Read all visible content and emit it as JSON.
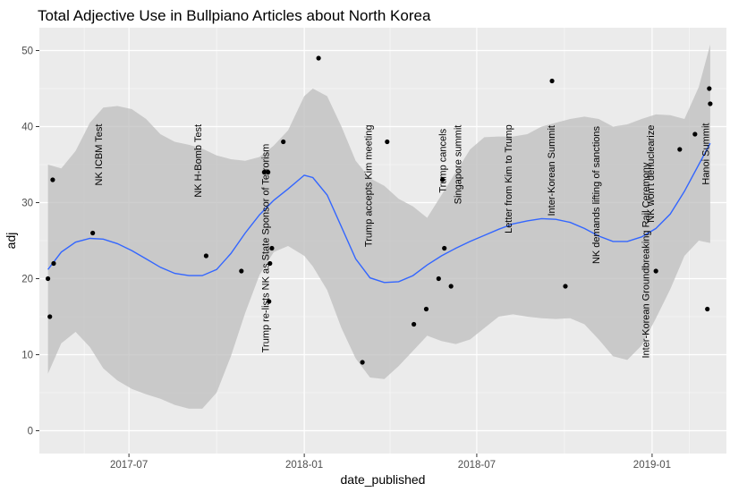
{
  "chart_data": {
    "type": "scatter",
    "title": "Total Adjective Use in Bullpiano Articles about North Korea",
    "xlabel": "date_published",
    "ylabel": "adj",
    "x_type": "date",
    "xlim": [
      "2017-03-29",
      "2019-03-20"
    ],
    "ylim": [
      -3,
      53
    ],
    "yticks": [
      0,
      10,
      20,
      30,
      40,
      50
    ],
    "xticks": [
      {
        "date": "2017-07-01",
        "label": "2017-07"
      },
      {
        "date": "2018-01-01",
        "label": "2018-01"
      },
      {
        "date": "2018-07-01",
        "label": "2018-07"
      },
      {
        "date": "2019-01-01",
        "label": "2019-01"
      }
    ],
    "grid": true,
    "colors": {
      "panel": "#ebebeb",
      "grid_major": "#ffffff",
      "points": "#000000",
      "smooth_line": "#3366ff",
      "ribbon": "#bdbdbd"
    },
    "points": [
      {
        "x": "2017-04-07",
        "y": 20
      },
      {
        "x": "2017-04-09",
        "y": 15
      },
      {
        "x": "2017-04-12",
        "y": 33
      },
      {
        "x": "2017-04-13",
        "y": 22
      },
      {
        "x": "2017-05-24",
        "y": 26
      },
      {
        "x": "2017-09-20",
        "y": 23
      },
      {
        "x": "2017-10-27",
        "y": 21
      },
      {
        "x": "2017-11-20",
        "y": 34
      },
      {
        "x": "2017-11-24",
        "y": 34
      },
      {
        "x": "2017-11-25",
        "y": 17
      },
      {
        "x": "2017-11-26",
        "y": 22
      },
      {
        "x": "2017-11-28",
        "y": 24
      },
      {
        "x": "2017-12-10",
        "y": 38
      },
      {
        "x": "2018-01-16",
        "y": 49
      },
      {
        "x": "2018-03-03",
        "y": 9
      },
      {
        "x": "2018-03-29",
        "y": 38
      },
      {
        "x": "2018-04-26",
        "y": 14
      },
      {
        "x": "2018-05-09",
        "y": 16
      },
      {
        "x": "2018-05-22",
        "y": 20
      },
      {
        "x": "2018-05-26",
        "y": 33
      },
      {
        "x": "2018-05-28",
        "y": 24
      },
      {
        "x": "2018-06-04",
        "y": 19
      },
      {
        "x": "2018-09-18",
        "y": 46
      },
      {
        "x": "2018-10-02",
        "y": 19
      },
      {
        "x": "2019-01-05",
        "y": 21
      },
      {
        "x": "2019-01-30",
        "y": 37
      },
      {
        "x": "2019-02-15",
        "y": 39
      },
      {
        "x": "2019-02-28",
        "y": 16
      },
      {
        "x": "2019-03-02",
        "y": 45
      },
      {
        "x": "2019-03-03",
        "y": 43
      }
    ],
    "smooth": [
      {
        "x": "2017-04-07",
        "y": 21.2,
        "lo": 7.5,
        "hi": 35.0
      },
      {
        "x": "2017-04-21",
        "y": 23.5,
        "lo": 11.5,
        "hi": 34.5
      },
      {
        "x": "2017-05-06",
        "y": 24.8,
        "lo": 13.0,
        "hi": 36.8
      },
      {
        "x": "2017-05-21",
        "y": 25.3,
        "lo": 11.0,
        "hi": 40.5
      },
      {
        "x": "2017-06-04",
        "y": 25.2,
        "lo": 8.2,
        "hi": 42.5
      },
      {
        "x": "2017-06-19",
        "y": 24.6,
        "lo": 6.6,
        "hi": 42.7
      },
      {
        "x": "2017-07-04",
        "y": 23.7,
        "lo": 5.5,
        "hi": 42.3
      },
      {
        "x": "2017-07-19",
        "y": 22.6,
        "lo": 4.8,
        "hi": 41.0
      },
      {
        "x": "2017-08-03",
        "y": 21.5,
        "lo": 4.2,
        "hi": 39.0
      },
      {
        "x": "2017-08-18",
        "y": 20.7,
        "lo": 3.4,
        "hi": 38.0
      },
      {
        "x": "2017-09-02",
        "y": 20.4,
        "lo": 2.9,
        "hi": 37.6
      },
      {
        "x": "2017-09-16",
        "y": 20.4,
        "lo": 2.9,
        "hi": 37.1
      },
      {
        "x": "2017-10-01",
        "y": 21.2,
        "lo": 5.0,
        "hi": 36.2
      },
      {
        "x": "2017-10-16",
        "y": 23.3,
        "lo": 9.8,
        "hi": 35.7
      },
      {
        "x": "2017-10-31",
        "y": 26.0,
        "lo": 15.5,
        "hi": 35.5
      },
      {
        "x": "2017-11-15",
        "y": 28.4,
        "lo": 20.5,
        "hi": 36.0
      },
      {
        "x": "2017-11-30",
        "y": 30.3,
        "lo": 23.5,
        "hi": 37.5
      },
      {
        "x": "2017-12-15",
        "y": 31.8,
        "lo": 24.3,
        "hi": 39.5
      },
      {
        "x": "2018-01-01",
        "y": 33.6,
        "lo": 23.0,
        "hi": 44.0
      },
      {
        "x": "2018-01-10",
        "y": 33.3,
        "lo": 21.6,
        "hi": 45.0
      },
      {
        "x": "2018-01-25",
        "y": 31.0,
        "lo": 18.5,
        "hi": 44.0
      },
      {
        "x": "2018-02-09",
        "y": 26.8,
        "lo": 13.5,
        "hi": 40.0
      },
      {
        "x": "2018-02-24",
        "y": 22.6,
        "lo": 9.5,
        "hi": 35.5
      },
      {
        "x": "2018-03-11",
        "y": 20.1,
        "lo": 7.0,
        "hi": 33.2
      },
      {
        "x": "2018-03-26",
        "y": 19.5,
        "lo": 6.8,
        "hi": 32.2
      },
      {
        "x": "2018-04-10",
        "y": 19.6,
        "lo": 8.5,
        "hi": 30.5
      },
      {
        "x": "2018-04-25",
        "y": 20.4,
        "lo": 10.5,
        "hi": 29.5
      },
      {
        "x": "2018-05-10",
        "y": 21.8,
        "lo": 12.5,
        "hi": 28.0
      },
      {
        "x": "2018-05-25",
        "y": 23.0,
        "lo": 11.8,
        "hi": 31.0
      },
      {
        "x": "2018-06-09",
        "y": 24.0,
        "lo": 11.4,
        "hi": 34.0
      },
      {
        "x": "2018-06-24",
        "y": 24.9,
        "lo": 12.0,
        "hi": 37.0
      },
      {
        "x": "2018-07-09",
        "y": 25.7,
        "lo": 13.5,
        "hi": 38.6
      },
      {
        "x": "2018-07-24",
        "y": 26.5,
        "lo": 15.0,
        "hi": 38.7
      },
      {
        "x": "2018-08-08",
        "y": 27.2,
        "lo": 15.3,
        "hi": 38.7
      },
      {
        "x": "2018-08-23",
        "y": 27.6,
        "lo": 15.0,
        "hi": 39.0
      },
      {
        "x": "2018-09-07",
        "y": 27.9,
        "lo": 14.8,
        "hi": 40.0
      },
      {
        "x": "2018-09-22",
        "y": 27.8,
        "lo": 14.7,
        "hi": 40.5
      },
      {
        "x": "2018-10-07",
        "y": 27.4,
        "lo": 14.8,
        "hi": 41.0
      },
      {
        "x": "2018-10-22",
        "y": 26.6,
        "lo": 14.0,
        "hi": 41.3
      },
      {
        "x": "2018-11-06",
        "y": 25.6,
        "lo": 12.0,
        "hi": 41.0
      },
      {
        "x": "2018-11-21",
        "y": 24.9,
        "lo": 9.8,
        "hi": 40.0
      },
      {
        "x": "2018-12-06",
        "y": 24.9,
        "lo": 9.3,
        "hi": 40.3
      },
      {
        "x": "2018-12-21",
        "y": 25.5,
        "lo": 11.2,
        "hi": 41.0
      },
      {
        "x": "2019-01-05",
        "y": 26.6,
        "lo": 14.8,
        "hi": 41.6
      },
      {
        "x": "2019-01-20",
        "y": 28.5,
        "lo": 18.6,
        "hi": 41.5
      },
      {
        "x": "2019-02-04",
        "y": 31.5,
        "lo": 23.0,
        "hi": 41.0
      },
      {
        "x": "2019-02-19",
        "y": 35.0,
        "lo": 25.0,
        "hi": 45.2
      },
      {
        "x": "2019-03-03",
        "y": 37.8,
        "lo": 24.7,
        "hi": 50.8
      }
    ],
    "annotations": [
      {
        "x": "2017-05-31",
        "y": 36.3,
        "text": "NK ICBM Test"
      },
      {
        "x": "2017-09-12",
        "y": 35.5,
        "text": "NK H-Bomb Test"
      },
      {
        "x": "2017-11-22",
        "y": 24.0,
        "text": "Trump re-lists NK as State Sponsor of Terrorism"
      },
      {
        "x": "2018-03-10",
        "y": 32.2,
        "text": "Trump accepts Kim meeting"
      },
      {
        "x": "2018-05-27",
        "y": 35.5,
        "text": "Trump cancels"
      },
      {
        "x": "2018-06-12",
        "y": 35.0,
        "text": "Singapore summit"
      },
      {
        "x": "2018-08-04",
        "y": 33.1,
        "text": "Letter from Kim to Trump"
      },
      {
        "x": "2018-09-18",
        "y": 34.2,
        "text": "Inter-Korean Summit"
      },
      {
        "x": "2018-11-04",
        "y": 31.0,
        "text": "NK demands lifting of sanctions"
      },
      {
        "x": "2018-12-26",
        "y": 22.4,
        "text": "Inter-Korean Groundbreaking Rail Ceremony"
      },
      {
        "x": "2018-12-31",
        "y": 33.8,
        "text": "NK won't denuclearize"
      },
      {
        "x": "2019-02-27",
        "y": 36.4,
        "text": "Hanoi Summit"
      }
    ]
  }
}
